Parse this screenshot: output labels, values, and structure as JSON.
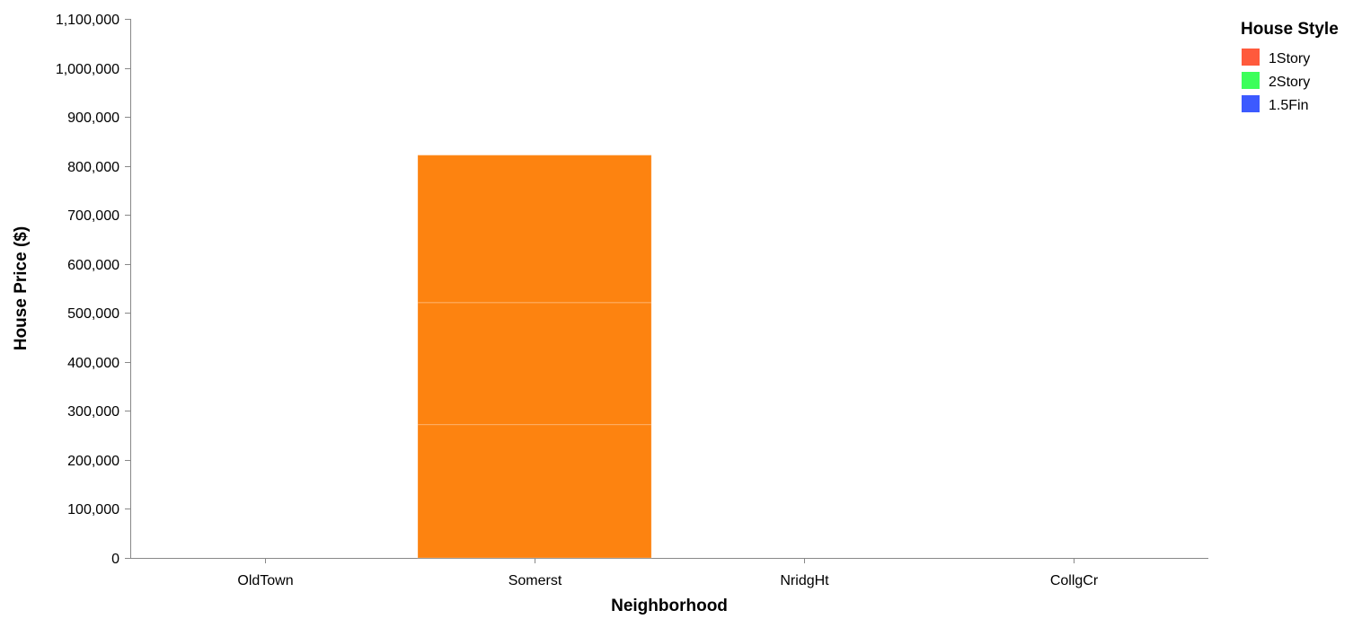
{
  "chart_data": {
    "type": "bar",
    "stacked": true,
    "xlabel": "Neighborhood",
    "ylabel": "House Price ($)",
    "categories": [
      "OldTown",
      "Somerst",
      "NridgHt",
      "CollgCr"
    ],
    "ylim": [
      0,
      1100000
    ],
    "yticks": [
      {
        "value": 0,
        "label": "0"
      },
      {
        "value": 100000,
        "label": "100,000"
      },
      {
        "value": 200000,
        "label": "200,000"
      },
      {
        "value": 300000,
        "label": "300,000"
      },
      {
        "value": 400000,
        "label": "400,000"
      },
      {
        "value": 500000,
        "label": "500,000"
      },
      {
        "value": 600000,
        "label": "600,000"
      },
      {
        "value": 700000,
        "label": "700,000"
      },
      {
        "value": 800000,
        "label": "800,000"
      },
      {
        "value": 900000,
        "label": "900,000"
      },
      {
        "value": 1000000,
        "label": "1,000,000"
      },
      {
        "value": 1100000,
        "label": "1,100,000"
      }
    ],
    "segments": [
      {
        "category": "Somerst",
        "value": 272000
      },
      {
        "category": "Somerst",
        "value": 249000
      },
      {
        "category": "Somerst",
        "value": 301000
      }
    ],
    "bar_color": "#fd8310",
    "legend": {
      "title": "House Style",
      "position": "top-right",
      "items": [
        {
          "label": "1Story",
          "color": "#ff5a3c"
        },
        {
          "label": "2Story",
          "color": "#3cff5a"
        },
        {
          "label": "1.5Fin",
          "color": "#3c5aff"
        }
      ]
    },
    "grid": false
  }
}
